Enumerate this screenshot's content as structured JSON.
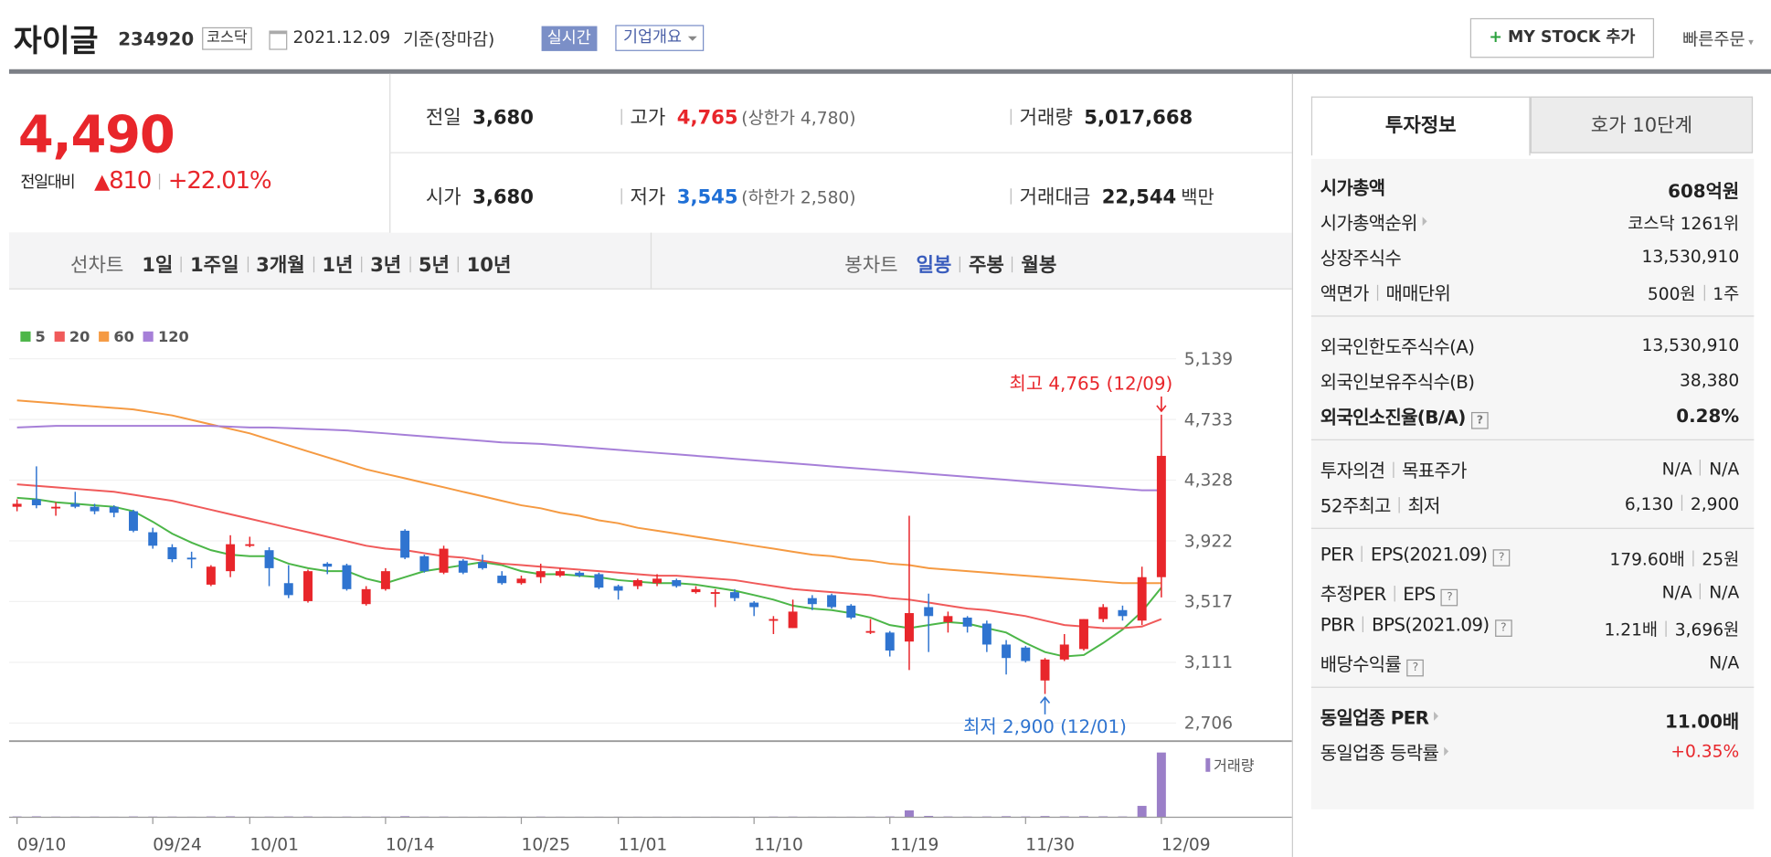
{
  "header": {
    "name": "자이글",
    "code": "234920",
    "market": "코스닥",
    "date": "2021.12.09",
    "basis": "기준(장마감)",
    "realtime": "실시간",
    "overview": "기업개요",
    "mystock": "MY STOCK 추가",
    "quick_order": "빠른주문"
  },
  "quote": {
    "price": "4,490",
    "change_label": "전일대비",
    "change": "810",
    "change_pct": "+22.01%"
  },
  "summary": {
    "rows": [
      [
        {
          "label": "전일",
          "value": "3,680"
        },
        {
          "label": "고가",
          "value": "4,765",
          "note": "(상한가 4,780)",
          "color": "#e8262b"
        },
        {
          "label": "거래량",
          "value": "5,017,668"
        }
      ],
      [
        {
          "label": "시가",
          "value": "3,680"
        },
        {
          "label": "저가",
          "value": "3,545",
          "note": "(하한가 2,580)",
          "color": "#1f6fd6"
        },
        {
          "label": "거래대금",
          "value": "22,544",
          "unit": "백만"
        }
      ]
    ]
  },
  "tabs": {
    "line_label": "선차트",
    "line_periods": [
      "1일",
      "1주일",
      "3개월",
      "1년",
      "3년",
      "5년",
      "10년"
    ],
    "candle_label": "봉차트",
    "candle_periods": [
      "일봉",
      "주봉",
      "월봉"
    ],
    "active": 0
  },
  "panel": {
    "tabs": [
      "투자정보",
      "호가 10단계"
    ],
    "sections": [
      [
        {
          "labels": [
            "시가총액"
          ],
          "values": [
            "608억원"
          ],
          "bold": true
        },
        {
          "labels": [
            "시가총액순위"
          ],
          "values": [
            "코스닥 1261위"
          ],
          "more": true
        },
        {
          "labels": [
            "상장주식수"
          ],
          "values": [
            "13,530,910"
          ]
        },
        {
          "labels": [
            "액면가",
            "매매단위"
          ],
          "values": [
            "500원",
            "1주"
          ]
        }
      ],
      [
        {
          "labels": [
            "외국인한도주식수(A)"
          ],
          "values": [
            "13,530,910"
          ]
        },
        {
          "labels": [
            "외국인보유주식수(B)"
          ],
          "values": [
            "38,380"
          ]
        },
        {
          "labels": [
            "외국인소진율(B/A)"
          ],
          "values": [
            "0.28%"
          ],
          "bold": true,
          "help": true
        }
      ],
      [
        {
          "labels": [
            "투자의견",
            "목표주가"
          ],
          "values": [
            "N/A",
            "N/A"
          ]
        },
        {
          "labels": [
            "52주최고",
            "최저"
          ],
          "values": [
            "6,130",
            "2,900"
          ]
        }
      ],
      [
        {
          "labels": [
            "PER",
            "EPS(2021.09)"
          ],
          "values": [
            "179.60배",
            "25원"
          ],
          "help": true
        },
        {
          "labels": [
            "추정PER",
            "EPS"
          ],
          "values": [
            "N/A",
            "N/A"
          ],
          "help": true
        },
        {
          "labels": [
            "PBR",
            "BPS(2021.09)"
          ],
          "values": [
            "1.21배",
            "3,696원"
          ],
          "help": true
        },
        {
          "labels": [
            "배당수익률"
          ],
          "values": [
            "N/A"
          ],
          "help": true
        }
      ],
      [
        {
          "labels": [
            "동일업종 PER"
          ],
          "values": [
            "11.00배"
          ],
          "bold": true,
          "more": true
        },
        {
          "labels": [
            "동일업종 등락률"
          ],
          "values": [
            "+0.35%"
          ],
          "more": true,
          "color": "#e8262b"
        }
      ]
    ]
  },
  "chart_data": {
    "type": "candlestick",
    "categories": [
      "09/10",
      null,
      null,
      null,
      null,
      null,
      null,
      "09/24",
      null,
      null,
      null,
      null,
      "10/01",
      null,
      null,
      null,
      null,
      null,
      null,
      "10/14",
      null,
      null,
      null,
      null,
      null,
      null,
      "10/25",
      null,
      null,
      null,
      null,
      "11/01",
      null,
      null,
      null,
      null,
      null,
      null,
      "11/10",
      null,
      null,
      null,
      null,
      null,
      null,
      "11/19",
      null,
      null,
      null,
      null,
      null,
      null,
      "11/30",
      null,
      null,
      null,
      null,
      null,
      null,
      "12/09"
    ],
    "candles": {
      "up_color": "#e8262b",
      "down_color": "#2f74d0",
      "open": [
        4150,
        4200,
        4140,
        4170,
        4150,
        4150,
        4120,
        3980,
        3880,
        3810,
        3630,
        3720,
        3890,
        3860,
        3640,
        3520,
        3770,
        3760,
        3500,
        3600,
        3990,
        3820,
        3710,
        3790,
        3780,
        3690,
        3640,
        3680,
        3690,
        3710,
        3700,
        3620,
        3620,
        3640,
        3660,
        3580,
        3570,
        3580,
        3510,
        3390,
        3340,
        3540,
        3560,
        3490,
        3310,
        3310,
        3250,
        3480,
        3380,
        3410,
        3370,
        3230,
        3210,
        2990,
        3130,
        3200,
        3400,
        3460,
        3390,
        3680
      ],
      "high": [
        4200,
        4420,
        4180,
        4250,
        4170,
        4160,
        4130,
        4010,
        3900,
        3850,
        3760,
        3960,
        3950,
        3880,
        3760,
        3730,
        3780,
        3770,
        3620,
        3740,
        4000,
        3830,
        3890,
        3800,
        3830,
        3720,
        3690,
        3770,
        3740,
        3720,
        3710,
        3630,
        3670,
        3700,
        3670,
        3620,
        3600,
        3600,
        3520,
        3420,
        3530,
        3560,
        3570,
        3500,
        3400,
        3320,
        4090,
        3570,
        3450,
        3420,
        3390,
        3260,
        3220,
        3140,
        3300,
        3400,
        3500,
        3490,
        3750,
        4765
      ],
      "low": [
        4120,
        4140,
        4090,
        4140,
        4100,
        4080,
        3980,
        3870,
        3780,
        3740,
        3620,
        3680,
        3880,
        3620,
        3540,
        3510,
        3700,
        3590,
        3490,
        3590,
        3800,
        3710,
        3700,
        3700,
        3730,
        3630,
        3630,
        3640,
        3680,
        3680,
        3600,
        3530,
        3600,
        3620,
        3610,
        3570,
        3480,
        3520,
        3420,
        3300,
        3340,
        3460,
        3470,
        3400,
        3300,
        3150,
        3060,
        3180,
        3310,
        3310,
        3180,
        3030,
        3110,
        2900,
        3120,
        3190,
        3380,
        3390,
        3360,
        3545
      ],
      "close": [
        4170,
        4160,
        4150,
        4150,
        4120,
        4110,
        3990,
        3890,
        3800,
        3800,
        3750,
        3900,
        3900,
        3740,
        3560,
        3720,
        3750,
        3600,
        3600,
        3720,
        3810,
        3720,
        3870,
        3710,
        3740,
        3640,
        3670,
        3720,
        3720,
        3690,
        3610,
        3590,
        3660,
        3670,
        3620,
        3600,
        3580,
        3540,
        3480,
        3400,
        3450,
        3500,
        3480,
        3410,
        3320,
        3190,
        3440,
        3420,
        3420,
        3350,
        3230,
        3140,
        3120,
        3130,
        3230,
        3400,
        3480,
        3420,
        3680,
        4490
      ]
    },
    "series": [
      {
        "name": "5",
        "color": "#4cb648",
        "values": [
          4210,
          4200,
          4180,
          4170,
          4160,
          4150,
          4120,
          4050,
          3970,
          3910,
          3860,
          3830,
          3820,
          3820,
          3770,
          3740,
          3720,
          3720,
          3670,
          3640,
          3680,
          3720,
          3740,
          3760,
          3780,
          3760,
          3720,
          3700,
          3700,
          3690,
          3680,
          3660,
          3650,
          3640,
          3640,
          3630,
          3610,
          3590,
          3560,
          3530,
          3490,
          3470,
          3460,
          3440,
          3410,
          3360,
          3340,
          3360,
          3380,
          3370,
          3340,
          3310,
          3240,
          3180,
          3150,
          3160,
          3240,
          3330,
          3450,
          3610
        ]
      },
      {
        "name": "20",
        "color": "#f05a5a",
        "values": [
          4300,
          4290,
          4280,
          4270,
          4260,
          4250,
          4230,
          4210,
          4190,
          4160,
          4130,
          4100,
          4070,
          4040,
          4010,
          3980,
          3950,
          3920,
          3890,
          3870,
          3860,
          3840,
          3820,
          3810,
          3790,
          3770,
          3760,
          3750,
          3740,
          3730,
          3720,
          3710,
          3700,
          3690,
          3690,
          3680,
          3670,
          3660,
          3640,
          3620,
          3600,
          3590,
          3580,
          3570,
          3560,
          3540,
          3530,
          3510,
          3490,
          3470,
          3460,
          3440,
          3420,
          3390,
          3360,
          3350,
          3340,
          3340,
          3350,
          3400
        ]
      },
      {
        "name": "60",
        "color": "#f59a42",
        "values": [
          4860,
          4850,
          4840,
          4830,
          4820,
          4810,
          4800,
          4780,
          4760,
          4730,
          4700,
          4670,
          4640,
          4600,
          4560,
          4520,
          4480,
          4440,
          4400,
          4370,
          4340,
          4310,
          4280,
          4250,
          4220,
          4190,
          4160,
          4140,
          4110,
          4090,
          4060,
          4040,
          4010,
          3990,
          3970,
          3950,
          3930,
          3910,
          3890,
          3870,
          3850,
          3830,
          3820,
          3800,
          3790,
          3770,
          3760,
          3740,
          3730,
          3720,
          3710,
          3700,
          3690,
          3680,
          3670,
          3660,
          3650,
          3640,
          3640,
          3640
        ]
      },
      {
        "name": "120",
        "color": "#a67fd8",
        "values": [
          4680,
          4685,
          4690,
          4690,
          4690,
          4690,
          4690,
          4690,
          4690,
          4690,
          4690,
          4685,
          4680,
          4680,
          4675,
          4670,
          4665,
          4660,
          4650,
          4640,
          4630,
          4620,
          4610,
          4600,
          4590,
          4580,
          4575,
          4570,
          4560,
          4550,
          4540,
          4530,
          4520,
          4510,
          4500,
          4490,
          4480,
          4470,
          4460,
          4450,
          4440,
          4430,
          4420,
          4410,
          4400,
          4390,
          4380,
          4370,
          4360,
          4350,
          4340,
          4330,
          4320,
          4310,
          4300,
          4290,
          4280,
          4270,
          4260,
          4260
        ]
      }
    ],
    "volume": {
      "name": "거래량",
      "color": "#9b7fc8",
      "values": [
        60000,
        70000,
        50000,
        50000,
        50000,
        40000,
        60000,
        50000,
        50000,
        40000,
        60000,
        70000,
        40000,
        50000,
        60000,
        60000,
        40000,
        50000,
        50000,
        50000,
        80000,
        50000,
        50000,
        40000,
        40000,
        40000,
        40000,
        50000,
        40000,
        40000,
        40000,
        40000,
        40000,
        40000,
        40000,
        40000,
        40000,
        40000,
        40000,
        50000,
        50000,
        40000,
        40000,
        40000,
        50000,
        60000,
        530000,
        100000,
        60000,
        50000,
        60000,
        80000,
        60000,
        90000,
        70000,
        80000,
        70000,
        60000,
        880000,
        5017668
      ]
    },
    "annotations": {
      "high": "최고 4,765 (12/09)",
      "low": "최저 2,900 (12/01)"
    },
    "ylim": [
      2706,
      5139
    ],
    "yticks": [
      {
        "value": 5139,
        "label": "5,139"
      },
      {
        "value": 4733,
        "label": "4,733"
      },
      {
        "value": 4328,
        "label": "4,328"
      },
      {
        "value": 3922,
        "label": "3,922"
      },
      {
        "value": 3517,
        "label": "3,517"
      },
      {
        "value": 3111,
        "label": "3,111"
      },
      {
        "value": 2706,
        "label": "2,706"
      }
    ],
    "grid": true
  }
}
